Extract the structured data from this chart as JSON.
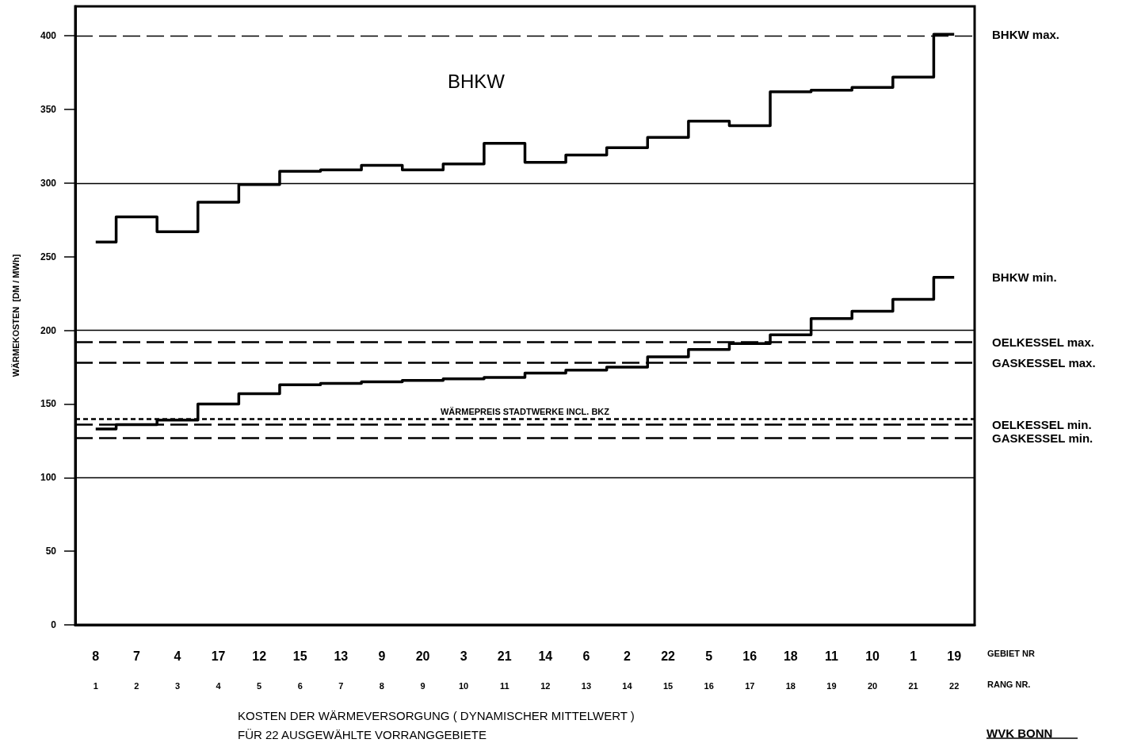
{
  "chart_data": {
    "type": "step",
    "ylabel": "WÄRMEKOSTEN  [DM / MWh]",
    "categories": [
      "8\n1",
      "7\n2",
      "4\n3",
      "17\n4",
      "12\n5",
      "15\n6",
      "13\n7",
      "9\n8",
      "20\n9",
      "3\n10",
      "21\n11",
      "14\n12",
      "6\n13",
      "2\n14",
      "22\n15",
      "5\n16",
      "16\n17",
      "18\n18",
      "11\n19",
      "10\n20",
      "1\n21",
      "19\n22"
    ],
    "series": [
      {
        "name": "BHKW max.",
        "color": "#000000",
        "values": [
          260,
          277,
          267,
          287,
          299,
          308,
          309,
          312,
          309,
          313,
          327,
          314,
          319,
          324,
          331,
          342,
          339,
          362,
          363,
          365,
          372,
          401
        ]
      },
      {
        "name": "BHKW min.",
        "color": "#000000",
        "values": [
          133,
          136,
          139,
          150,
          157,
          163,
          164,
          165,
          166,
          167,
          168,
          171,
          173,
          175,
          182,
          187,
          191,
          197,
          208,
          213,
          221,
          236
        ]
      }
    ],
    "ylim": [
      0,
      420
    ],
    "yticks": [
      0,
      50,
      100,
      150,
      200,
      250,
      300,
      350,
      400
    ],
    "ref_lines": [
      {
        "axis": "y",
        "value": 100,
        "color": "#000000",
        "line_style": "solid"
      },
      {
        "axis": "y",
        "value": 200,
        "color": "#000000",
        "line_style": "solid"
      },
      {
        "axis": "y",
        "value": 300,
        "color": "#000000",
        "line_style": "solid"
      },
      {
        "axis": "y",
        "value": 400,
        "color": "#000000",
        "line_style": "dashed"
      },
      {
        "axis": "y",
        "value": 192,
        "label": "OELKESSEL max.",
        "color": "#000000",
        "line_style": "dashed"
      },
      {
        "axis": "y",
        "value": 178,
        "label": "GASKESSEL max.",
        "color": "#000000",
        "line_style": "dashed"
      },
      {
        "axis": "y",
        "value": 140,
        "label": "WÄRMEPREIS STADTWERKE INCL. BKZ",
        "color": "#000000",
        "line_style": "dotted"
      },
      {
        "axis": "y",
        "value": 136,
        "label": "OELKESSEL min.",
        "color": "#000000",
        "line_style": "dashed"
      },
      {
        "axis": "y",
        "value": 127,
        "label": "GASKESSEL min.",
        "color": "#000000",
        "line_style": "dashed"
      }
    ],
    "annotations": [
      "BHKW",
      "GEBIET NR",
      "RANG NR.",
      "WVK BONN",
      "KOSTEN DER WÄRMEVERSORGUNG ( DYNAMISCHER MITTELWERT )\nFÜR 22 AUSGEWÄHLTE VORRANGGEBIETE"
    ],
    "marker": "none",
    "line_style": "solid"
  }
}
